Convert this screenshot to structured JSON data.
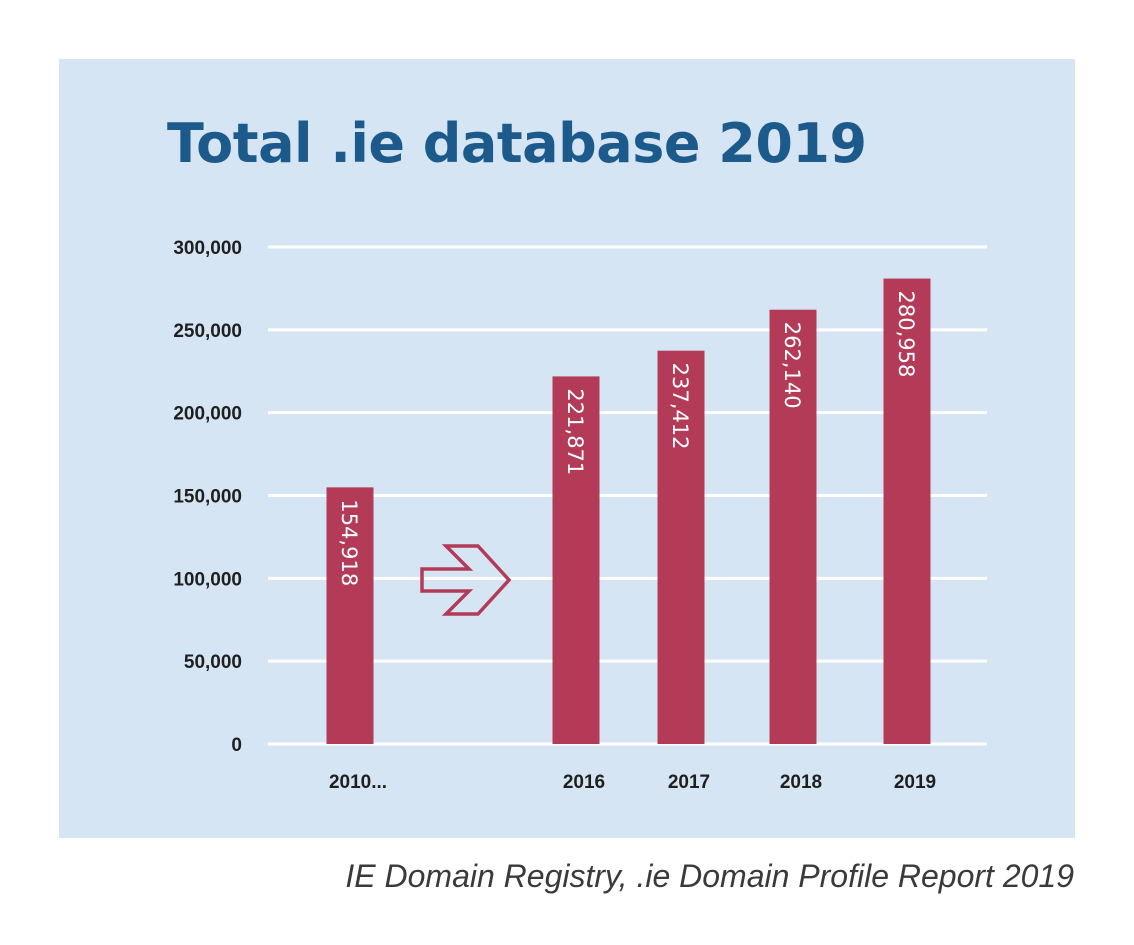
{
  "chart_data": {
    "type": "bar",
    "title": "Total .ie database 2019",
    "categories": [
      "2010...",
      "2016",
      "2017",
      "2018",
      "2019"
    ],
    "values": [
      154918,
      221871,
      237412,
      262140,
      280958
    ],
    "value_labels": [
      "154,918",
      "221,871",
      "237,412",
      "262,140",
      "280,958"
    ],
    "yticks": [
      0,
      50000,
      100000,
      150000,
      200000,
      250000,
      300000
    ],
    "ytick_labels": [
      "0",
      "50,000",
      "100,000",
      "150,000",
      "200,000",
      "250,000",
      "300,000"
    ],
    "ylim": [
      0,
      300000
    ],
    "xlabel": "",
    "ylabel": "",
    "grid": true,
    "gap_marker": "right-arrow-icon",
    "colors": {
      "bar": "#b33b58",
      "title": "#1c5a8c",
      "panel_background": "#d6e5f3",
      "grid": "#ffffff",
      "arrow": "#b33b58"
    }
  },
  "source": "IE Domain Registry, .ie Domain Profile Report 2019"
}
